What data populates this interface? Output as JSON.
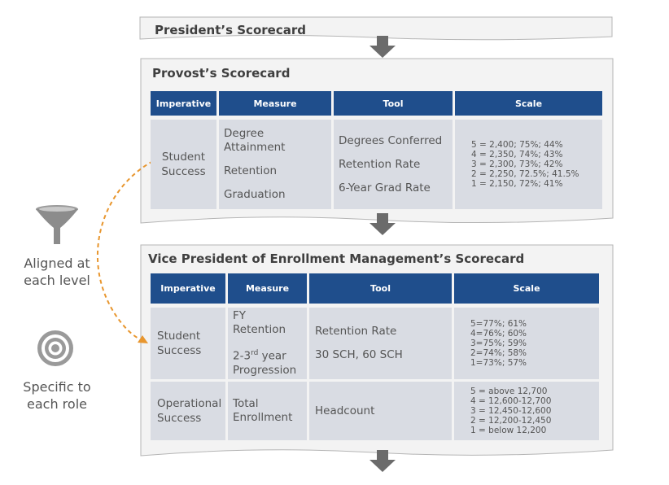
{
  "president": {
    "title": "President’s Scorecard"
  },
  "provost": {
    "title": "Provost’s Scorecard",
    "headers": [
      "Imperative",
      "Measure",
      "Tool",
      "Scale"
    ],
    "row": {
      "imperative": [
        "Student",
        "Success"
      ],
      "measures": [
        "Degree",
        "Attainment",
        "Retention",
        "Graduation"
      ],
      "tools": [
        "Degrees Conferred",
        "Retention Rate",
        "6-Year Grad Rate"
      ],
      "scale": [
        "5 = 2,400; 75%; 44%",
        "4 = 2,350, 74%; 43%",
        "3 = 2,300, 73%; 42%",
        "2 = 2,250, 72.5%; 41.5%",
        "1 = 2,150, 72%; 41%"
      ]
    }
  },
  "vp": {
    "title": "Vice President of Enrollment Management’s Scorecard",
    "headers": [
      "Imperative",
      "Measure",
      "Tool",
      "Scale"
    ],
    "rows": [
      {
        "imperative": [
          "Student",
          "Success"
        ],
        "measures": [
          "FY",
          "Retention",
          "2-3",
          "rd",
          " year",
          "Progression"
        ],
        "tools": [
          "Retention Rate",
          "30 SCH, 60 SCH"
        ],
        "scale": [
          "5=77%; 61%",
          "4=76%; 60%",
          "3=75%; 59%",
          "2=74%; 58%",
          "1=73%; 57%"
        ]
      },
      {
        "imperative": [
          "Operational",
          "Success"
        ],
        "measures": [
          "Total",
          "Enrollment"
        ],
        "tools": [
          "Headcount"
        ],
        "scale": [
          "5 = above 12,700",
          "4 = 12,600-12,700",
          "3 = 12,450-12,600",
          "2 = 12,200-12,450",
          "1 = below 12,200"
        ]
      }
    ]
  },
  "side": {
    "aligned": [
      "Aligned at",
      "each level"
    ],
    "specific": [
      "Specific to",
      "each role"
    ]
  },
  "colors": {
    "header_blue": "#1f4e8c",
    "cell_gray": "#d9dce3",
    "arrow_gray": "#6b6b6b",
    "dashed_orange": "#e8962e"
  }
}
